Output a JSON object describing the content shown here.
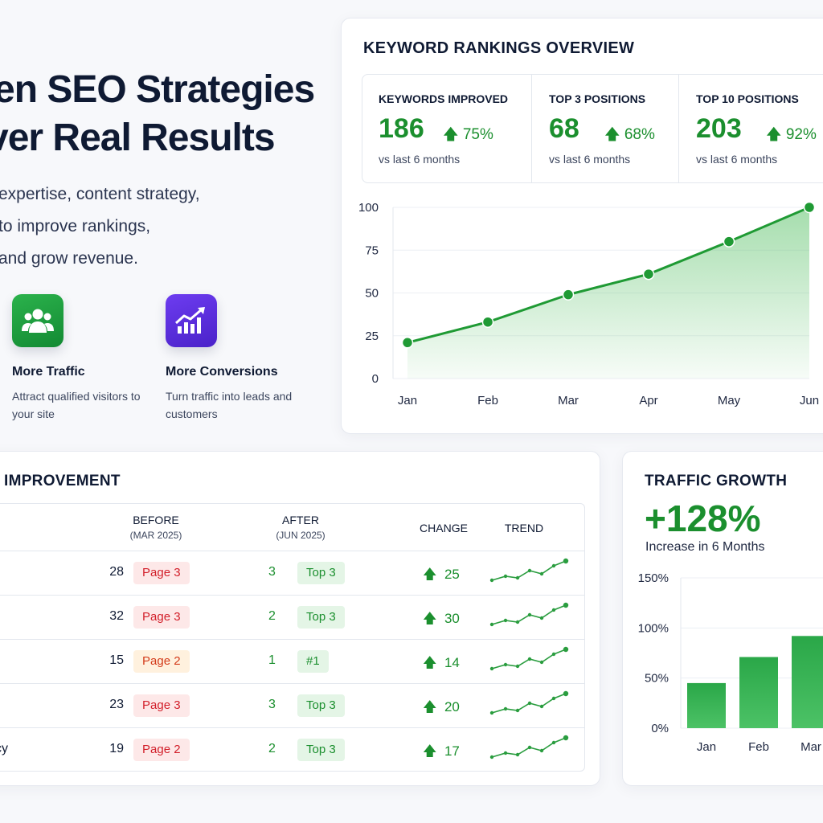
{
  "hero": {
    "title_line1": "en SEO Strategies",
    "title_line2": "ver Real Results",
    "copy": [
      "expertise, content strategy,",
      "to improve rankings,",
      "and grow revenue."
    ],
    "features": [
      {
        "title": "More Traffic",
        "desc": "Attract qualified visitors to your site",
        "icon": "users-icon",
        "color": "#22a843"
      },
      {
        "title": "More Conversions",
        "desc": "Turn traffic into leads and customers",
        "icon": "growth-chart-icon",
        "color": "#5a2fdc"
      }
    ]
  },
  "keyword_rankings": {
    "title": "KEYWORD RANKINGS OVERVIEW",
    "stats": [
      {
        "label": "KEYWORDS IMPROVED",
        "value": "186",
        "change": "75%",
        "sub": "vs last 6 months"
      },
      {
        "label": "TOP 3 POSITIONS",
        "value": "68",
        "change": "68%",
        "sub": "vs last 6 months"
      },
      {
        "label": "TOP 10 POSITIONS",
        "value": "203",
        "change": "92%",
        "sub": "vs last 6 months"
      }
    ]
  },
  "keyword_improvement": {
    "title": "IMPROVEMENT",
    "headers": {
      "before": "BEFORE",
      "before_sub": "(MAR 2025)",
      "after": "AFTER",
      "after_sub": "(JUN 2025)",
      "change": "CHANGE",
      "trend": "TREND"
    },
    "rows": [
      {
        "keyword": "",
        "before": "28",
        "before_page": "Page 3",
        "before_status": "bad",
        "after": "3",
        "after_badge": "Top 3",
        "change": "25"
      },
      {
        "keyword": "",
        "before": "32",
        "before_page": "Page 3",
        "before_status": "bad",
        "after": "2",
        "after_badge": "Top 3",
        "change": "30"
      },
      {
        "keyword": "",
        "before": "15",
        "before_page": "Page 2",
        "before_status": "warn",
        "after": "1",
        "after_badge": "#1",
        "change": "14"
      },
      {
        "keyword": "",
        "before": "23",
        "before_page": "Page 3",
        "before_status": "bad",
        "after": "3",
        "after_badge": "Top 3",
        "change": "20"
      },
      {
        "keyword": "cy",
        "before": "19",
        "before_page": "Page 2",
        "before_status": "bad",
        "after": "2",
        "after_badge": "Top 3",
        "change": "17"
      }
    ]
  },
  "traffic_growth": {
    "title": "TRAFFIC GROWTH",
    "value": "+128%",
    "sub": "Increase in 6 Months"
  },
  "colors": {
    "accent_green": "#1b8f2e",
    "line_green": "#1f9a34",
    "bar_green": "#2fb24f",
    "text": "#0f1a33"
  },
  "chart_data": [
    {
      "type": "area",
      "x": [
        "Jan",
        "Feb",
        "Mar",
        "Apr",
        "May",
        "Jun"
      ],
      "y": [
        21,
        33,
        49,
        61,
        80,
        100
      ],
      "ylim": [
        0,
        100
      ],
      "yticks": [
        0,
        25,
        50,
        75,
        100
      ],
      "grid": true
    },
    {
      "type": "bar",
      "categories": [
        "Jan",
        "Feb",
        "Mar"
      ],
      "values": [
        45,
        71,
        92
      ],
      "ylim": [
        0,
        150
      ],
      "yticks": [
        "0%",
        "50%",
        "100%",
        "150%"
      ],
      "grid": true
    }
  ]
}
